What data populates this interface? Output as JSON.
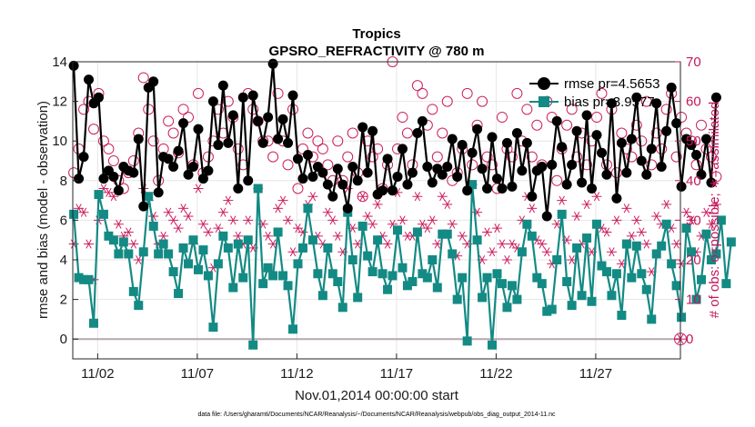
{
  "chart_data": {
    "type": "line",
    "title": "Tropics",
    "subtitle": "GPSRO_REFRACTIVITY @ 780 m",
    "xlabel": "Nov.01,2014 00:00:00 start",
    "ylabel_left": "rmse and bias (model - observation)",
    "ylabel_right": "# of obs: o=possible; ∗=assimilated",
    "footer": "data file: /Users/gharamti/Documents/NCAR/Reanalysis/~/Documents/NCAR/Reanalysis/webpub/obs_diag_output_2014-11.nc",
    "xlim": [
      0.75,
      31.25
    ],
    "ylim_left": [
      -1,
      14
    ],
    "ylim_right": [
      -5,
      70
    ],
    "x_ticks": [
      2,
      7,
      12,
      17,
      22,
      27
    ],
    "x_tick_labels": [
      "11/02",
      "11/07",
      "11/12",
      "11/17",
      "11/22",
      "11/27"
    ],
    "y_left_ticks": [
      0,
      2,
      4,
      6,
      8,
      10,
      12,
      14
    ],
    "y_right_ticks": [
      0,
      10,
      20,
      30,
      40,
      50,
      60,
      70
    ],
    "x_start": 0.8,
    "x_step": 0.25,
    "legend": {
      "position": "top-right",
      "entries": [
        "rmse pr=4.5653",
        "bias pr=3.9577"
      ]
    },
    "colors": {
      "rmse": "#000000",
      "bias": "#138a84",
      "obs": "#cc1f5f"
    },
    "series": [
      {
        "name": "rmse",
        "axis": "left",
        "values": [
          13.8,
          8.1,
          9.2,
          13.1,
          11.9,
          12.2,
          8.1,
          8.5,
          8.2,
          7.5,
          8.7,
          8.5,
          8.4,
          10.1,
          6.7,
          12.7,
          13.0,
          7.4,
          9.2,
          9.1,
          8.7,
          9.5,
          10.9,
          8.3,
          8.7,
          10.6,
          8.1,
          8.5,
          12.0,
          9.8,
          12.8,
          9.9,
          11.3,
          7.6,
          12.2,
          8.0,
          12.3,
          11.0,
          9.9,
          11.2,
          13.9,
          10.1,
          11.1,
          9.9,
          12.3,
          9.1,
          8.1,
          9.3,
          8.2,
          8.7,
          8.4,
          7.8,
          7.2,
          8.6,
          7.8,
          6.6,
          8.7,
          8.0,
          10.7,
          8.4,
          10.5,
          7.3,
          7.5,
          9.1,
          7.5,
          8.2,
          9.6,
          7.8,
          8.4,
          10.4,
          11.0,
          8.7,
          7.9,
          8.6,
          8.3,
          8.7,
          10.1,
          8.2,
          9.8,
          7.5,
          9.4,
          10.6,
          8.6,
          7.6,
          10.2,
          8.1,
          7.6,
          9.9,
          7.7,
          10.4,
          8.5,
          9.9,
          7.2,
          8.5,
          8.7,
          6.2,
          8.8,
          11.0,
          9.7,
          7.8,
          8.8,
          10.5,
          7.9,
          11.3,
          7.6,
          10.3,
          9.4,
          8.3,
          11.9,
          7.1,
          9.9,
          8.4,
          10.1,
          12.2,
          9.0,
          8.3,
          9.6,
          11.9,
          8.7,
          10.5,
          12.7,
          10.9,
          7.7,
          10.1,
          9.8,
          9.3,
          8.3,
          10.1,
          7.9,
          12.2
        ]
      },
      {
        "name": "bias",
        "axis": "left",
        "values": [
          6.3,
          3.1,
          3.0,
          3.0,
          0.8,
          7.3,
          6.3,
          5.2,
          5.0,
          4.3,
          4.9,
          4.3,
          2.4,
          1.7,
          4.4,
          7.2,
          5.7,
          4.3,
          4.8,
          4.3,
          3.4,
          2.3,
          4.6,
          3.8,
          5.0,
          3.5,
          4.5,
          3.2,
          0.6,
          3.8,
          5.2,
          4.6,
          2.6,
          4.8,
          3.1,
          5.0,
          -0.3,
          7.6,
          2.8,
          3.6,
          3.2,
          5.4,
          3.2,
          2.7,
          0.5,
          3.8,
          4.6,
          6.6,
          5.0,
          3.3,
          2.2,
          4.6,
          3.3,
          2.9,
          1.6,
          6.4,
          4.0,
          2.1,
          5.7,
          4.2,
          3.4,
          5.0,
          3.3,
          2.5,
          3.2,
          5.5,
          3.6,
          2.7,
          2.9,
          5.4,
          3.3,
          3.1,
          4.0,
          2.6,
          5.3,
          5.3,
          4.3,
          2.0,
          3.1,
          -0.1,
          7.8,
          5.0,
          2.1,
          3.1,
          -0.3,
          3.3,
          2.8,
          1.6,
          2.7,
          2.0,
          4.4,
          5.8,
          5.2,
          3.1,
          2.8,
          1.4,
          1.5,
          4.0,
          6.3,
          2.9,
          1.7,
          4.6,
          2.2,
          5.1,
          1.9,
          5.8,
          3.7,
          3.4,
          2.2,
          3.3,
          1.2,
          4.8,
          3.1,
          4.7,
          3.3,
          2.5,
          1.0,
          4.3,
          4.7,
          5.8,
          3.8,
          2.7,
          1.1,
          5.6,
          4.4,
          2.0,
          3.0,
          5.3,
          4.0,
          4.3,
          6.0,
          2.8,
          4.9
        ]
      },
      {
        "name": "# obs possible",
        "axis": "right",
        "marker": "circle",
        "values": [
          42,
          48,
          58,
          60,
          53,
          62,
          50,
          48,
          45,
          40,
          38,
          42,
          45,
          52,
          66,
          58,
          50,
          40,
          48,
          55,
          52,
          47,
          58,
          56,
          44,
          62,
          42,
          46,
          50,
          58,
          52,
          60,
          56,
          48,
          44,
          62,
          58,
          55,
          50,
          50,
          46,
          62,
          50,
          44,
          58,
          38,
          48,
          52,
          46,
          50,
          48,
          44,
          40,
          50,
          40,
          46,
          52,
          42,
          36,
          50,
          46,
          48,
          38,
          44,
          70,
          48,
          56,
          52,
          44,
          64,
          62,
          54,
          58,
          46,
          52,
          60,
          40,
          42,
          48,
          62,
          44,
          54,
          60,
          46,
          44,
          38,
          56,
          48,
          46,
          62,
          50,
          58,
          46,
          54,
          44,
          60,
          56,
          40,
          48,
          54,
          58,
          46,
          52,
          44,
          50,
          56,
          62,
          44,
          58,
          42,
          52,
          48,
          46,
          54,
          50,
          60,
          44,
          52,
          48,
          58,
          62,
          46,
          56,
          52,
          50,
          44,
          54,
          48,
          46,
          41
        ]
      },
      {
        "name": "# obs assimilated",
        "axis": "right",
        "marker": "asterisk",
        "values": [
          24,
          33,
          32,
          24,
          15,
          30,
          38,
          37,
          36,
          29,
          26,
          27,
          24,
          20,
          38,
          35,
          31,
          24,
          26,
          32,
          30,
          28,
          33,
          31,
          24,
          38,
          29,
          27,
          18,
          28,
          32,
          35,
          30,
          26,
          24,
          30,
          23,
          38,
          29,
          26,
          24,
          33,
          35,
          30,
          22,
          28,
          27,
          34,
          36,
          26,
          24,
          32,
          30,
          26,
          22,
          38,
          28,
          24,
          36,
          31,
          29,
          34,
          26,
          24,
          29,
          37,
          30,
          26,
          26,
          36,
          29,
          28,
          30,
          24,
          36,
          34,
          29,
          21,
          26,
          24,
          39,
          32,
          20,
          27,
          22,
          28,
          24,
          20,
          24,
          23,
          30,
          36,
          33,
          25,
          24,
          22,
          19,
          29,
          35,
          25,
          20,
          31,
          24,
          34,
          22,
          36,
          28,
          27,
          22,
          30,
          19,
          33,
          26,
          30,
          27,
          24,
          17,
          31,
          29,
          34,
          28,
          24,
          19,
          32,
          30,
          22,
          26,
          32,
          29,
          34
        ]
      }
    ]
  }
}
